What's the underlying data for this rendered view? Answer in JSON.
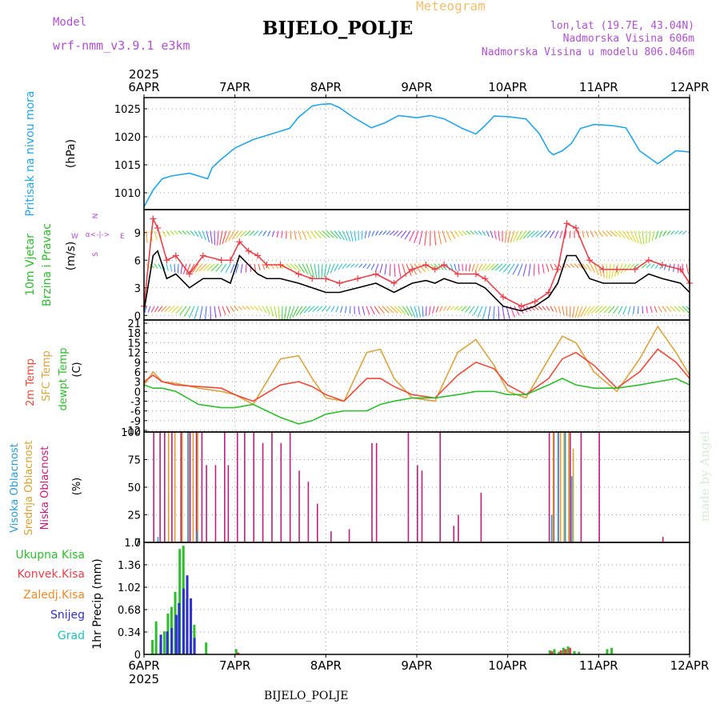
{
  "colors": {
    "background": "#ffffff",
    "grid": "#9a9a9a",
    "frame": "#000000",
    "pressure": "#22a5e8",
    "wind_speed": "#000000",
    "wind_gust": "#e8404a",
    "temp_2m": "#ec4a3a",
    "temp_sfc": "#dca440",
    "dewpoint": "#2dbd2d",
    "cloud_high": "#2a9ad8",
    "cloud_mid": "#d8a030",
    "cloud_low": "#c01c7c",
    "precip_total": "#2dbd2d",
    "precip_conv": "#e8404a",
    "precip_frozen": "#f08a2a",
    "precip_snow": "#3030d0",
    "precip_graupel": "#20c0c0",
    "header_purple": "#b050d0",
    "header_orange": "#f0c070",
    "watermark": "#d8ead8"
  },
  "header": {
    "model_label": "Model",
    "model_name": "wrf-nmm_v3.9.1 e3km",
    "station": "BIJELO_POLJE",
    "title": "Meteogram",
    "coords": "lon,lat (19.7E, 43.04N)",
    "altitude": "Nadmorska Visina 606m",
    "model_altitude": "Nadmorska Visina u modelu 806.046m"
  },
  "footer": {
    "station": "BIJELO_POLJE",
    "watermark": "made by Angel"
  },
  "x_axis": {
    "year": "2025",
    "ticks": [
      "6APR",
      "7APR",
      "8APR",
      "9APR",
      "10APR",
      "11APR",
      "12APR"
    ]
  },
  "wind_legend": {
    "n": "N",
    "s": "S",
    "w": "W",
    "e": "E",
    "caption": "α<-|->"
  },
  "panel_labels": {
    "pressure": [
      "Pritisak na nivou mora",
      "(hPa)"
    ],
    "wind": [
      "10m Vjetar",
      "Brzina i Pravac",
      "(m/s)"
    ],
    "temp": [
      "2m Temp",
      "SFC Temp",
      "dewpt Temp",
      "(C)"
    ],
    "cloud": [
      "Visoka Oblacnost",
      "Srednja Oblacnost",
      "Niska Oblacnost",
      "(%)"
    ],
    "precip": [
      "Ukupna Kisa",
      "Konvek.Kisa",
      "Zaledj.Kisa",
      "Snijeg",
      "Grad",
      "1hr Precip (mm)"
    ]
  },
  "chart_data": [
    {
      "type": "line",
      "panel": "pressure",
      "unit": "hPa",
      "ylim": [
        1007,
        1027
      ],
      "yticks": [
        "1010",
        "1015",
        "1020",
        "1025"
      ],
      "x_unit": "days since 6APR 00UTC",
      "series": [
        {
          "name": "Pritisak na nivou mora",
          "x": [
            0,
            0.1,
            0.2,
            0.3,
            0.5,
            0.7,
            0.75,
            0.85,
            1.0,
            1.2,
            1.4,
            1.5,
            1.6,
            1.7,
            1.85,
            1.95,
            2.05,
            2.15,
            2.3,
            2.5,
            2.65,
            2.8,
            2.9,
            3.0,
            3.15,
            3.3,
            3.5,
            3.65,
            3.75,
            3.85,
            4.0,
            4.2,
            4.35,
            4.45,
            4.5,
            4.6,
            4.7,
            4.8,
            4.95,
            5.15,
            5.3,
            5.45,
            5.65,
            5.85,
            6.0
          ],
          "values": [
            1007.5,
            1010.5,
            1012.5,
            1013.0,
            1013.5,
            1012.5,
            1014.5,
            1016,
            1018,
            1019.5,
            1020.5,
            1021,
            1021.5,
            1023.5,
            1025.5,
            1025.8,
            1025.9,
            1025.2,
            1023.5,
            1021.6,
            1022.5,
            1023.8,
            1023.6,
            1023.4,
            1023.8,
            1023.2,
            1021.5,
            1020.5,
            1022,
            1023.7,
            1023.6,
            1023.2,
            1020.5,
            1017.5,
            1016.8,
            1017.5,
            1018.8,
            1021.5,
            1022.2,
            1022.0,
            1021.6,
            1017.5,
            1015.2,
            1017.5,
            1017.3
          ]
        }
      ]
    },
    {
      "type": "line",
      "panel": "wind",
      "unit": "m/s",
      "ylim": [
        -0.5,
        11.5
      ],
      "yticks": [
        "0",
        "3",
        "6",
        "9"
      ],
      "x_unit": "days since 6APR 00UTC",
      "series": [
        {
          "name": "Brzina (speed)",
          "x": [
            0,
            0.1,
            0.15,
            0.25,
            0.35,
            0.5,
            0.65,
            0.85,
            0.95,
            1.05,
            1.15,
            1.25,
            1.35,
            1.5,
            1.7,
            1.85,
            2.0,
            2.15,
            2.35,
            2.55,
            2.75,
            2.95,
            3.1,
            3.2,
            3.3,
            3.45,
            3.65,
            3.75,
            3.95,
            4.15,
            4.3,
            4.45,
            4.55,
            4.65,
            4.75,
            4.9,
            5.05,
            5.2,
            5.4,
            5.55,
            5.7,
            5.9,
            6.0
          ],
          "values": [
            0.5,
            6.5,
            7.0,
            4.0,
            4.5,
            3.0,
            4.0,
            4.0,
            3.5,
            6.5,
            5.5,
            4.5,
            4.0,
            4.0,
            3.5,
            3.0,
            2.5,
            2.5,
            3.0,
            3.5,
            2.5,
            3.5,
            3.8,
            3.5,
            4.0,
            3.5,
            3.5,
            3.0,
            1.0,
            0.5,
            1.0,
            2.0,
            3.5,
            6.5,
            6.5,
            4.0,
            3.5,
            3.5,
            3.5,
            4.5,
            4.0,
            3.5,
            2.5
          ]
        },
        {
          "name": "Udari (gust)",
          "x": [
            0,
            0.1,
            0.15,
            0.25,
            0.35,
            0.5,
            0.65,
            0.85,
            0.95,
            1.05,
            1.15,
            1.25,
            1.35,
            1.5,
            1.7,
            1.85,
            2.0,
            2.15,
            2.35,
            2.55,
            2.75,
            2.95,
            3.1,
            3.2,
            3.3,
            3.45,
            3.65,
            3.75,
            3.95,
            4.15,
            4.3,
            4.45,
            4.55,
            4.65,
            4.75,
            4.9,
            5.05,
            5.2,
            5.4,
            5.55,
            5.7,
            5.9,
            6.0
          ],
          "values": [
            1.0,
            10.5,
            9.5,
            6.0,
            6.5,
            4.5,
            6.5,
            6.0,
            6.0,
            8.0,
            7.0,
            6.5,
            5.5,
            5.5,
            4.5,
            4.0,
            4.0,
            3.5,
            4.0,
            4.5,
            3.5,
            5.0,
            5.5,
            5.0,
            5.5,
            4.5,
            4.5,
            4.0,
            2.0,
            1.0,
            1.5,
            2.5,
            5.0,
            10.0,
            9.5,
            6.0,
            5.0,
            5.0,
            5.0,
            6.0,
            5.5,
            5.0,
            3.5
          ]
        }
      ]
    },
    {
      "type": "line",
      "panel": "temp",
      "unit": "C",
      "ylim": [
        -12.5,
        22
      ],
      "yticks": [
        "-12",
        "-9",
        "-6",
        "-3",
        "0",
        "3",
        "6",
        "9",
        "12",
        "15",
        "18",
        "21"
      ],
      "x_unit": "days since 6APR 00UTC",
      "series": [
        {
          "name": "2m Temp",
          "x": [
            0,
            0.1,
            0.2,
            0.35,
            0.6,
            0.85,
            1.0,
            1.2,
            1.5,
            1.7,
            1.85,
            2.0,
            2.2,
            2.45,
            2.6,
            2.75,
            2.95,
            3.2,
            3.45,
            3.65,
            3.85,
            4.0,
            4.2,
            4.45,
            4.6,
            4.75,
            4.95,
            5.2,
            5.45,
            5.65,
            5.85,
            6.0
          ],
          "values": [
            3,
            5,
            3,
            2,
            1.5,
            1,
            -1,
            -3,
            2,
            3,
            1.5,
            -1,
            -3,
            4,
            4,
            1.5,
            -1,
            -2,
            5,
            9,
            7,
            2,
            -1,
            4,
            10,
            12,
            8,
            1,
            6,
            13,
            9,
            4
          ]
        },
        {
          "name": "SFC Temp",
          "x": [
            0,
            0.1,
            0.2,
            0.35,
            0.6,
            0.85,
            1.0,
            1.2,
            1.5,
            1.7,
            1.85,
            2.0,
            2.2,
            2.45,
            2.6,
            2.75,
            2.95,
            3.2,
            3.45,
            3.65,
            3.85,
            4.0,
            4.2,
            4.45,
            4.6,
            4.75,
            4.95,
            5.2,
            5.45,
            5.65,
            5.85,
            6.0
          ],
          "values": [
            2,
            6,
            3,
            2.5,
            1,
            0,
            -1,
            -4,
            10,
            11,
            4,
            -2,
            -3,
            12,
            13,
            4,
            -2,
            -3,
            12,
            16,
            8,
            0,
            -2,
            10,
            17,
            15,
            6,
            0,
            10,
            20,
            12,
            5
          ]
        },
        {
          "name": "dewpt Temp",
          "x": [
            0,
            0.1,
            0.2,
            0.35,
            0.6,
            0.85,
            1.0,
            1.2,
            1.5,
            1.7,
            1.85,
            2.0,
            2.2,
            2.45,
            2.6,
            2.75,
            2.95,
            3.2,
            3.45,
            3.65,
            3.85,
            4.0,
            4.2,
            4.45,
            4.6,
            4.75,
            4.95,
            5.2,
            5.45,
            5.65,
            5.85,
            6.0
          ],
          "values": [
            2,
            1,
            1,
            0,
            -4,
            -5,
            -5,
            -4,
            -8,
            -10,
            -9,
            -7,
            -6,
            -6,
            -4,
            -3,
            -2,
            -2,
            -1,
            0,
            0,
            -1,
            -1,
            2,
            4,
            2,
            1,
            1,
            2,
            3,
            4,
            2
          ]
        }
      ]
    },
    {
      "type": "bar",
      "panel": "cloud",
      "unit": "%",
      "ylim": [
        0,
        100
      ],
      "yticks": [
        "0",
        "25",
        "50",
        "75",
        "100"
      ],
      "x_unit": "days since 6APR 00UTC",
      "series": [
        {
          "name": "Niska Oblacnost",
          "x": [
            0.1,
            0.17,
            0.22,
            0.3,
            0.4,
            0.5,
            0.57,
            0.63,
            0.68,
            0.78,
            0.88,
            0.92,
            1.02,
            1.1,
            1.2,
            1.3,
            1.4,
            1.5,
            1.6,
            1.7,
            1.8,
            1.9,
            2.05,
            2.25,
            2.5,
            2.55,
            2.9,
            3.0,
            3.05,
            3.25,
            3.4,
            3.45,
            3.7,
            4.45,
            4.5,
            4.55,
            4.62,
            4.68,
            4.8,
            5.0,
            5.7
          ],
          "values": [
            100,
            100,
            100,
            100,
            100,
            100,
            100,
            100,
            70,
            70,
            100,
            70,
            100,
            100,
            100,
            90,
            100,
            90,
            100,
            65,
            55,
            35,
            10,
            12,
            90,
            90,
            100,
            70,
            65,
            100,
            15,
            25,
            45,
            100,
            100,
            100,
            100,
            100,
            100,
            100,
            5
          ]
        },
        {
          "name": "Srednja Oblacnost",
          "x": [
            0.25,
            0.32,
            0.4,
            0.47,
            0.52,
            0.57,
            4.48,
            4.56,
            4.6,
            4.65,
            4.7
          ],
          "values": [
            100,
            100,
            100,
            100,
            100,
            100,
            100,
            100,
            100,
            100,
            85
          ]
        },
        {
          "name": "Visoka Oblacnost",
          "x": [
            0.12,
            0.45,
            0.55,
            4.45,
            4.52,
            4.6,
            4.67
          ],
          "values": [
            5,
            100,
            10,
            25,
            100,
            100,
            60
          ]
        }
      ]
    },
    {
      "type": "bar",
      "panel": "precip",
      "unit": "mm",
      "ylim": [
        0,
        1.7
      ],
      "yticks": [
        "0",
        "0.34",
        "0.68",
        "1.02",
        "1.36",
        "1.7"
      ],
      "x_unit": "days since 6APR 00UTC",
      "series": [
        {
          "name": "Ukupna Kisa",
          "x": [
            0.08,
            0.12,
            0.17,
            0.21,
            0.25,
            0.29,
            0.33,
            0.38,
            0.42,
            0.46,
            0.5,
            0.54,
            0.67,
            1.0,
            4.45,
            4.5,
            4.55,
            4.6,
            4.65,
            4.72,
            4.77,
            5.08,
            5.13
          ],
          "values": [
            0.22,
            0.5,
            0.18,
            0.35,
            0.62,
            0.72,
            0.95,
            1.6,
            1.65,
            0.85,
            0.2,
            0.45,
            0.18,
            0.08,
            0.06,
            0.08,
            0.04,
            0.1,
            0.12,
            0.05,
            0.04,
            0.08,
            0.1
          ]
        },
        {
          "name": "Konvek.Kisa",
          "x": [
            1.0,
            4.45,
            4.55,
            4.6,
            4.65
          ],
          "values": [
            0.03,
            0.05,
            0.06,
            0.08,
            0.1
          ]
        },
        {
          "name": "Zaledj.Kisa",
          "x": [],
          "values": []
        },
        {
          "name": "Snijeg",
          "x": [
            0.15,
            0.22,
            0.27,
            0.32,
            0.35,
            0.4,
            0.44,
            0.48,
            0.52
          ],
          "values": [
            0.3,
            0.35,
            0.4,
            0.6,
            0.78,
            1.0,
            1.2,
            0.85,
            0.25
          ]
        },
        {
          "name": "Grad",
          "x": [],
          "values": []
        }
      ]
    }
  ]
}
